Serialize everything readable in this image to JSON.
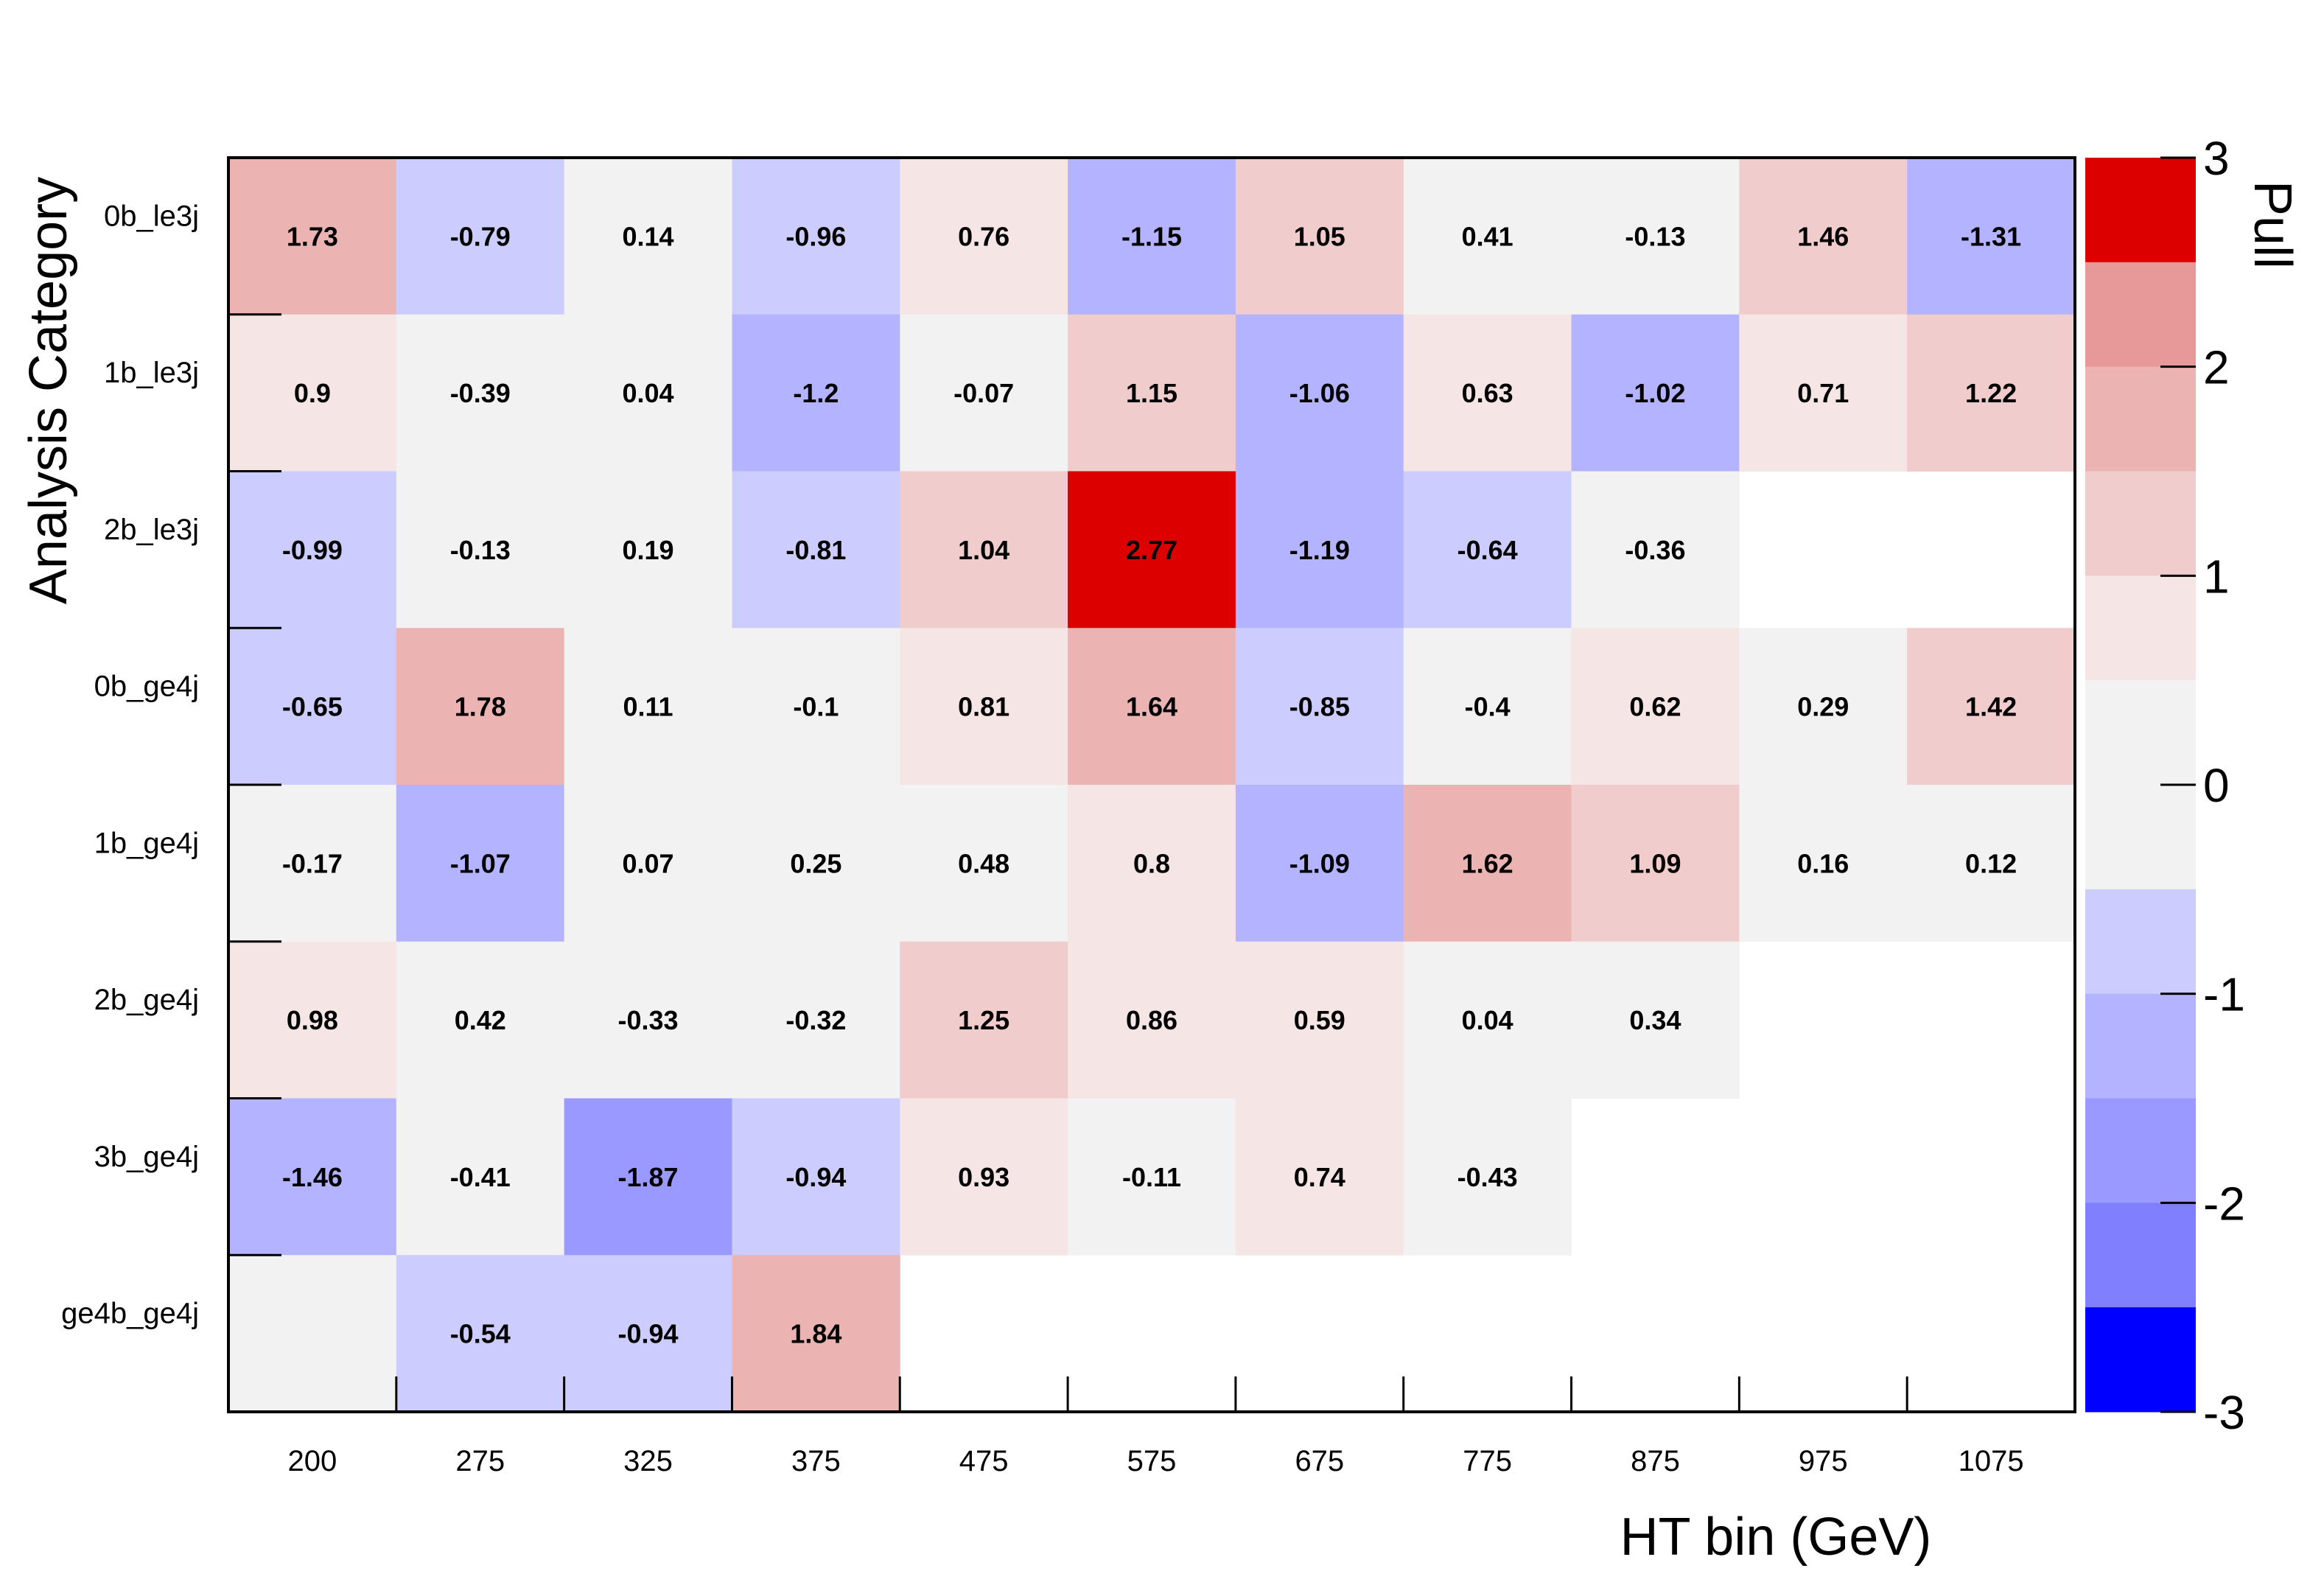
{
  "chart_data": {
    "type": "heatmap",
    "title": "",
    "xlabel": "HT bin (GeV)",
    "ylabel": "Analysis Category",
    "zlabel": "Pull",
    "x_categories": [
      "200",
      "275",
      "325",
      "375",
      "475",
      "575",
      "675",
      "775",
      "875",
      "975",
      "1075"
    ],
    "y_categories": [
      "0b_le3j",
      "1b_le3j",
      "2b_le3j",
      "0b_ge4j",
      "1b_ge4j",
      "2b_ge4j",
      "3b_ge4j",
      "ge4b_ge4j"
    ],
    "values": [
      [
        1.73,
        -0.79,
        0.14,
        -0.96,
        0.76,
        -1.15,
        1.05,
        0.41,
        -0.13,
        1.46,
        -1.31
      ],
      [
        0.9,
        -0.39,
        0.04,
        -1.2,
        -0.07,
        1.15,
        -1.06,
        0.63,
        -1.02,
        0.71,
        1.22
      ],
      [
        -0.99,
        -0.13,
        0.19,
        -0.81,
        1.04,
        2.77,
        -1.19,
        -0.64,
        -0.36,
        null,
        null
      ],
      [
        -0.65,
        1.78,
        0.11,
        -0.1,
        0.81,
        1.64,
        -0.85,
        -0.4,
        0.62,
        0.29,
        1.42
      ],
      [
        -0.17,
        -1.07,
        0.07,
        0.25,
        0.48,
        0.8,
        -1.09,
        1.62,
        1.09,
        0.16,
        0.12
      ],
      [
        0.98,
        0.42,
        -0.33,
        -0.32,
        1.25,
        0.86,
        0.59,
        0.04,
        0.34,
        null,
        null
      ],
      [
        -1.46,
        -0.41,
        -1.87,
        -0.94,
        0.93,
        -0.11,
        0.74,
        -0.43,
        null,
        null,
        null
      ],
      [
        0.0,
        -0.54,
        -0.94,
        1.84,
        null,
        null,
        null,
        null,
        null,
        null,
        null
      ]
    ],
    "value_labels": [
      [
        "1.73",
        "-0.79",
        "0.14",
        "-0.96",
        "0.76",
        "-1.15",
        "1.05",
        "0.41",
        "-0.13",
        "1.46",
        "-1.31"
      ],
      [
        "0.9",
        "-0.39",
        "0.04",
        "-1.2",
        "-0.07",
        "1.15",
        "-1.06",
        "0.63",
        "-1.02",
        "0.71",
        "1.22"
      ],
      [
        "-0.99",
        "-0.13",
        "0.19",
        "-0.81",
        "1.04",
        "2.77",
        "-1.19",
        "-0.64",
        "-0.36",
        "",
        ""
      ],
      [
        "-0.65",
        "1.78",
        "0.11",
        "-0.1",
        "0.81",
        "1.64",
        "-0.85",
        "-0.4",
        "0.62",
        "0.29",
        "1.42"
      ],
      [
        "-0.17",
        "-1.07",
        "0.07",
        "0.25",
        "0.48",
        "0.8",
        "-1.09",
        "1.62",
        "1.09",
        "0.16",
        "0.12"
      ],
      [
        "0.98",
        "0.42",
        "-0.33",
        "-0.32",
        "1.25",
        "0.86",
        "0.59",
        "0.04",
        "0.34",
        "",
        ""
      ],
      [
        "-1.46",
        "-0.41",
        "-1.87",
        "-0.94",
        "0.93",
        "-0.11",
        "0.74",
        "-0.43",
        "",
        "",
        ""
      ],
      [
        "",
        "-0.54",
        "-0.94",
        "1.84",
        "",
        "",
        "",
        "",
        "",
        "",
        ""
      ]
    ],
    "zlim": [
      -3,
      3
    ],
    "colorbar_ticks": [
      "3",
      "2",
      "1",
      "0",
      "-1",
      "-2",
      "-3"
    ],
    "colorbar_bins": [
      {
        "from": 2.5,
        "to": 3.0,
        "color": "#dd0000"
      },
      {
        "from": 2.0,
        "to": 2.5,
        "color": "#e79999"
      },
      {
        "from": 1.5,
        "to": 2.0,
        "color": "#ecb3b3"
      },
      {
        "from": 1.0,
        "to": 1.5,
        "color": "#f1cccc"
      },
      {
        "from": 0.5,
        "to": 1.0,
        "color": "#f6e5e5"
      },
      {
        "from": -0.5,
        "to": 0.5,
        "color": "#f2f2f2"
      },
      {
        "from": -1.0,
        "to": -0.5,
        "color": "#ccccff"
      },
      {
        "from": -1.5,
        "to": -1.0,
        "color": "#b3b3ff"
      },
      {
        "from": -2.0,
        "to": -1.5,
        "color": "#9999ff"
      },
      {
        "from": -2.5,
        "to": -2.0,
        "color": "#8080ff"
      },
      {
        "from": -3.0,
        "to": -2.5,
        "color": "#0000ff"
      }
    ],
    "grid": false,
    "legend": "colorbar-right"
  }
}
